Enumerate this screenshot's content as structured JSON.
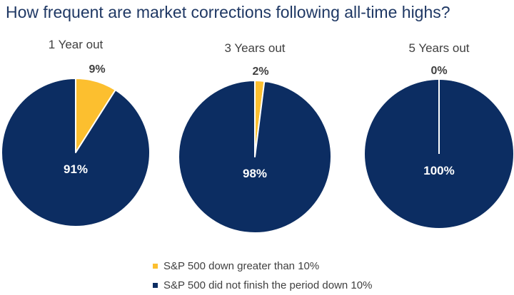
{
  "title": "How frequent are market corrections following all-time highs?",
  "colors": {
    "down": "#fcbf2f",
    "not_down": "#0c2d62"
  },
  "legend": [
    {
      "label": "S&P 500 down greater than 10%",
      "color": "#fcbf2f"
    },
    {
      "label": "S&P 500 did not finish the period down 10%",
      "color": "#0c2d62"
    }
  ],
  "chart_data": [
    {
      "type": "pie",
      "title": "1 Year out",
      "slices": [
        {
          "name": "S&P 500 down greater than 10%",
          "value": 9,
          "label": "9%"
        },
        {
          "name": "S&P 500 did not finish the period down 10%",
          "value": 91,
          "label": "91%"
        }
      ]
    },
    {
      "type": "pie",
      "title": "3 Years out",
      "slices": [
        {
          "name": "S&P 500 down greater than 10%",
          "value": 2,
          "label": "2%"
        },
        {
          "name": "S&P 500 did not finish the period down 10%",
          "value": 98,
          "label": "98%"
        }
      ]
    },
    {
      "type": "pie",
      "title": "5 Years out",
      "slices": [
        {
          "name": "S&P 500 down greater than 10%",
          "value": 0,
          "label": "0%"
        },
        {
          "name": "S&P 500 did not finish the period down 10%",
          "value": 100,
          "label": "100%"
        }
      ]
    }
  ]
}
